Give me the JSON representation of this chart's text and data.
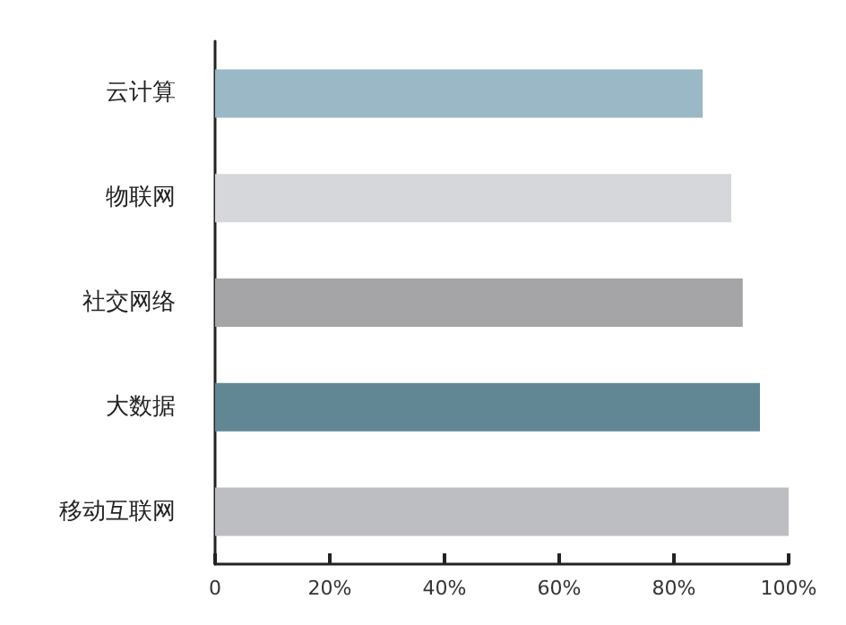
{
  "chart_data": {
    "type": "bar",
    "orientation": "horizontal",
    "categories": [
      "云计算",
      "物联网",
      "社交网络",
      "大数据",
      "移动互联网"
    ],
    "values": [
      85,
      90,
      92,
      95,
      100
    ],
    "colors": [
      "#9ab8c6",
      "#d5d7db",
      "#a5a5a8",
      "#628794",
      "#bdbec2"
    ],
    "xlim": [
      0,
      100
    ],
    "xticks": [
      0,
      {
        "value": 20,
        "label": "20%"
      },
      {
        "value": 40,
        "label": "40%"
      },
      {
        "value": 60,
        "label": "60%"
      },
      {
        "value": 80,
        "label": "80%"
      },
      {
        "value": 100,
        "label": "100%"
      }
    ],
    "grid": false
  }
}
